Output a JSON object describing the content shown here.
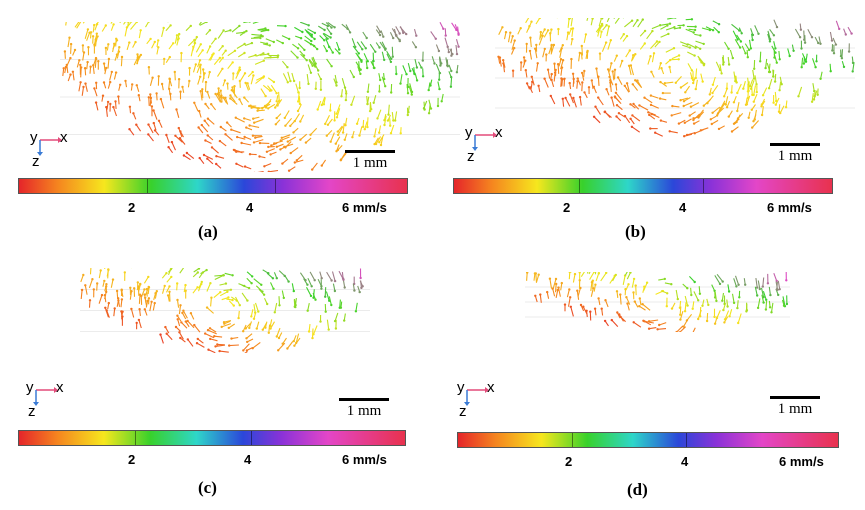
{
  "colorbar": {
    "ticks": [
      "2",
      "4",
      "6 mm/s"
    ]
  },
  "scale_bar": {
    "label": "1 mm"
  },
  "axes": {
    "y": "y",
    "x": "x",
    "z": "z"
  },
  "panels": [
    {
      "caption": "(a)",
      "intensity": 1.0
    },
    {
      "caption": "(b)",
      "intensity": 0.85
    },
    {
      "caption": "(c)",
      "intensity": 0.7
    },
    {
      "caption": "(d)",
      "intensity": 0.55
    }
  ],
  "colors": {
    "slow": "#e5252a",
    "mid_low": "#f5851f",
    "mid": "#f6e71e",
    "green": "#38d12b",
    "fast": "#e346c8"
  }
}
